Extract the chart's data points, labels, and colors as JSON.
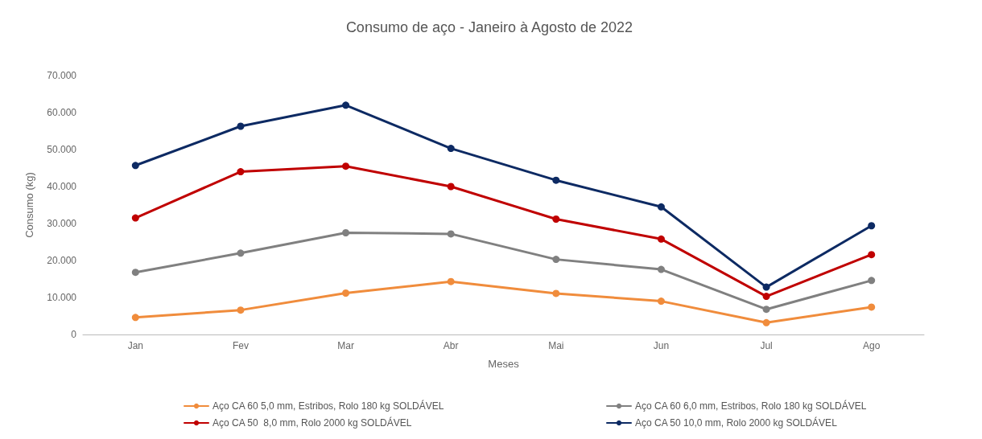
{
  "chart_data": {
    "type": "line",
    "title": "Consumo de aço - Janeiro à Agosto de 2022",
    "xlabel": "Meses",
    "ylabel": "Consumo (kg)",
    "categories": [
      "Jan",
      "Fev",
      "Mar",
      "Abr",
      "Mai",
      "Jun",
      "Jul",
      "Ago"
    ],
    "ylim": [
      0,
      70000
    ],
    "yticks": [
      0,
      {
        "value": 10000,
        "label": "10.000"
      },
      {
        "value": 20000,
        "label": "20.000"
      },
      {
        "value": 30000,
        "label": "30.000"
      },
      {
        "value": 40000,
        "label": "40.000"
      },
      {
        "value": 50000,
        "label": "50.000"
      },
      {
        "value": 60000,
        "label": "60.000"
      },
      {
        "value": 70000,
        "label": "70.000"
      }
    ],
    "grid": false,
    "legend": "bottom",
    "marker": "circle",
    "line_style": "solid",
    "series": [
      {
        "name": "Aço CA 60 5,0 mm, Estribos, Rolo 180 kg SOLDÁVEL",
        "color": "#f08c3c",
        "values": [
          4600,
          6600,
          11200,
          14300,
          11100,
          9000,
          3200,
          7400
        ]
      },
      {
        "name": "Aço CA 60 6,0 mm, Estribos, Rolo 180 kg SOLDÁVEL",
        "color": "#808080",
        "values": [
          16800,
          22000,
          27500,
          27200,
          20300,
          17600,
          6800,
          14600
        ]
      },
      {
        "name": "Aço CA 50  8,0 mm, Rolo 2000 kg SOLDÁVEL",
        "color": "#c00000",
        "values": [
          31500,
          44000,
          45500,
          40000,
          31200,
          25800,
          10300,
          21600
        ]
      },
      {
        "name": "Aço CA 50 10,0 mm, Rolo 2000 kg SOLDÁVEL",
        "color": "#0d2a63",
        "values": [
          45700,
          56300,
          62000,
          50300,
          41700,
          34500,
          12800,
          29400
        ]
      }
    ]
  }
}
